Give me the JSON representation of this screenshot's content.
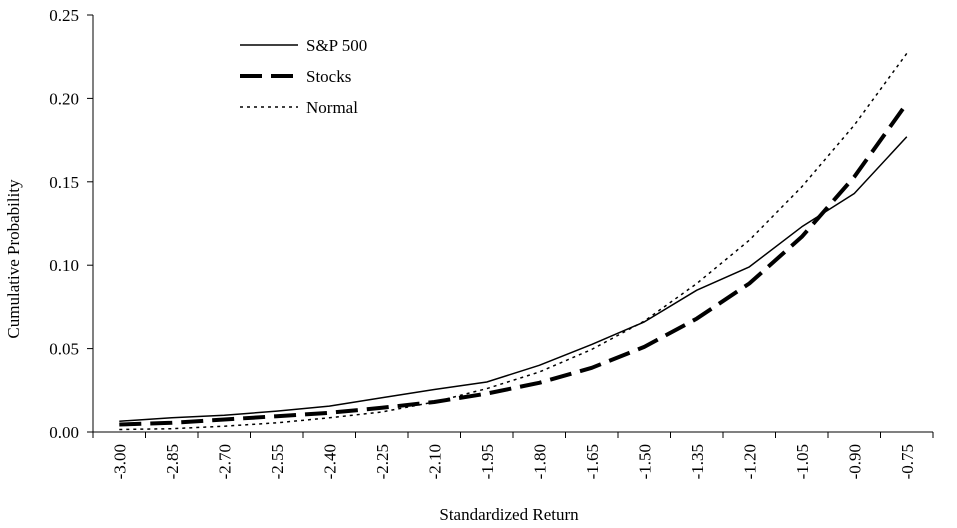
{
  "chart_data": {
    "type": "line",
    "xlabel": "Standardized Return",
    "ylabel": "Cumulative Probability",
    "x": [
      "-3.00",
      "-2.85",
      "-2.70",
      "-2.55",
      "-2.40",
      "-2.25",
      "-2.10",
      "-1.95",
      "-1.80",
      "-1.65",
      "-1.50",
      "-1.35",
      "-1.20",
      "-1.05",
      "-0.90",
      "-0.75"
    ],
    "y_ticks": [
      "0.00",
      "0.05",
      "0.10",
      "0.15",
      "0.20",
      "0.25"
    ],
    "ylim": [
      0,
      0.25
    ],
    "grid": false,
    "legend_position": "top-left",
    "series": [
      {
        "name": "S&P 500",
        "style": "solid",
        "color": "#000000",
        "values": [
          0.0065,
          0.0085,
          0.01,
          0.0125,
          0.0155,
          0.0205,
          0.0255,
          0.03,
          0.04,
          0.0525,
          0.066,
          0.085,
          0.099,
          0.123,
          0.143,
          0.177
        ]
      },
      {
        "name": "Stocks",
        "style": "long-dash",
        "color": "#000000",
        "values": [
          0.0045,
          0.0055,
          0.0075,
          0.0095,
          0.0115,
          0.0145,
          0.018,
          0.023,
          0.0295,
          0.0385,
          0.051,
          0.068,
          0.089,
          0.117,
          0.153,
          0.197
        ]
      },
      {
        "name": "Normal",
        "style": "dotted",
        "color": "#000000",
        "values": [
          0.0015,
          0.002,
          0.0035,
          0.0055,
          0.0085,
          0.012,
          0.018,
          0.026,
          0.036,
          0.0495,
          0.0665,
          0.089,
          0.115,
          0.147,
          0.184,
          0.227
        ]
      }
    ]
  }
}
